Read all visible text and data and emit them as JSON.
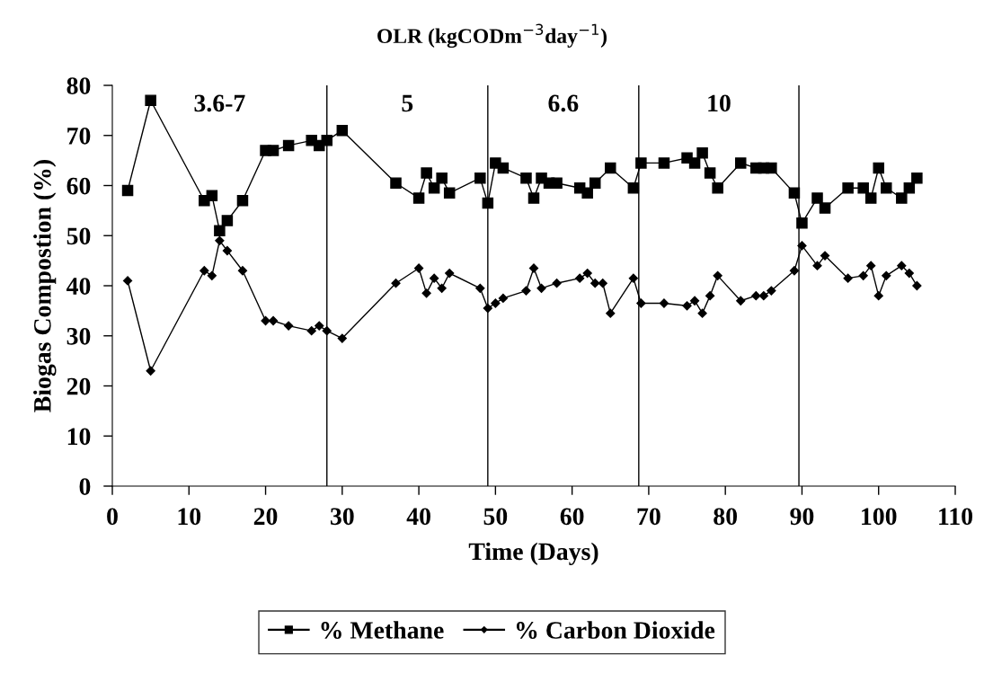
{
  "chart_data": {
    "type": "line",
    "title": "OLR (kgCODm$^{−3}$day$^{−1}$)",
    "xlabel": "Time (Days)",
    "ylabel": "Biogas Compostion (%)",
    "xlim": [
      0,
      110
    ],
    "xticks": [
      0,
      10,
      20,
      30,
      40,
      50,
      60,
      70,
      80,
      90,
      100,
      110
    ],
    "ylim": [
      0,
      80
    ],
    "yticks": [
      0,
      10,
      20,
      30,
      40,
      50,
      60,
      70,
      80
    ],
    "grid": false,
    "legend": "bottom",
    "series": [
      {
        "name": "% Methane",
        "color": "#000000",
        "marker": "square",
        "x": [
          2,
          5,
          12,
          13,
          14,
          15,
          17,
          20,
          21,
          23,
          26,
          27,
          28,
          30,
          37,
          40,
          41,
          42,
          43,
          44,
          48,
          49,
          50,
          51,
          54,
          55,
          56,
          57,
          58,
          61,
          62,
          63,
          65,
          68,
          69,
          72,
          75,
          76,
          77,
          78,
          79,
          82,
          84,
          85,
          86,
          89,
          90,
          92,
          93,
          96,
          98,
          99,
          100,
          101,
          103,
          104,
          105
        ],
        "values": [
          59,
          77,
          57,
          58,
          51,
          53,
          57,
          67,
          67,
          68,
          69,
          68,
          69,
          71,
          60.5,
          57.5,
          62.5,
          59.5,
          61.5,
          58.5,
          61.5,
          56.5,
          64.5,
          63.5,
          61.5,
          57.5,
          61.5,
          60.5,
          60.5,
          59.5,
          58.5,
          60.5,
          63.5,
          59.5,
          64.5,
          64.5,
          65.5,
          64.5,
          66.5,
          62.5,
          59.5,
          64.5,
          63.5,
          63.5,
          63.5,
          58.5,
          52.5,
          57.5,
          55.5,
          59.5,
          59.5,
          57.5,
          63.5,
          59.5,
          57.5,
          59.5,
          61.5
        ]
      },
      {
        "name": "% Carbon Dioxide",
        "color": "#000000",
        "marker": "diamond",
        "x": [
          2,
          5,
          12,
          13,
          14,
          15,
          17,
          20,
          21,
          23,
          26,
          27,
          28,
          30,
          37,
          40,
          41,
          42,
          43,
          44,
          48,
          49,
          50,
          51,
          54,
          55,
          56,
          58,
          61,
          62,
          63,
          64,
          65,
          68,
          69,
          72,
          75,
          76,
          77,
          78,
          79,
          82,
          84,
          85,
          86,
          89,
          90,
          92,
          93,
          96,
          98,
          99,
          100,
          101,
          103,
          104,
          105
        ],
        "values": [
          41,
          23,
          43,
          42,
          49,
          47,
          43,
          33,
          33,
          32,
          31,
          32,
          31,
          29.5,
          40.5,
          43.5,
          38.5,
          41.5,
          39.5,
          42.5,
          39.5,
          35.5,
          36.5,
          37.5,
          39,
          43.5,
          39.5,
          40.5,
          41.5,
          42.5,
          40.5,
          40.5,
          34.5,
          41.5,
          36.5,
          36.5,
          36,
          37,
          34.5,
          38,
          42,
          37,
          38,
          38,
          39,
          43,
          48,
          44,
          46,
          41.5,
          42,
          44,
          38,
          42,
          44,
          42.5,
          40
        ]
      }
    ],
    "ref_lines": [
      {
        "axis": "x",
        "value": 28,
        "color": "#000000"
      },
      {
        "axis": "x",
        "value": 49,
        "color": "#000000"
      },
      {
        "axis": "x",
        "value": 68.7,
        "color": "#000000"
      },
      {
        "axis": "x",
        "value": 89.6,
        "color": "#000000"
      }
    ],
    "annotations": [
      "3.6-7",
      "5",
      "6.6",
      "10"
    ]
  }
}
